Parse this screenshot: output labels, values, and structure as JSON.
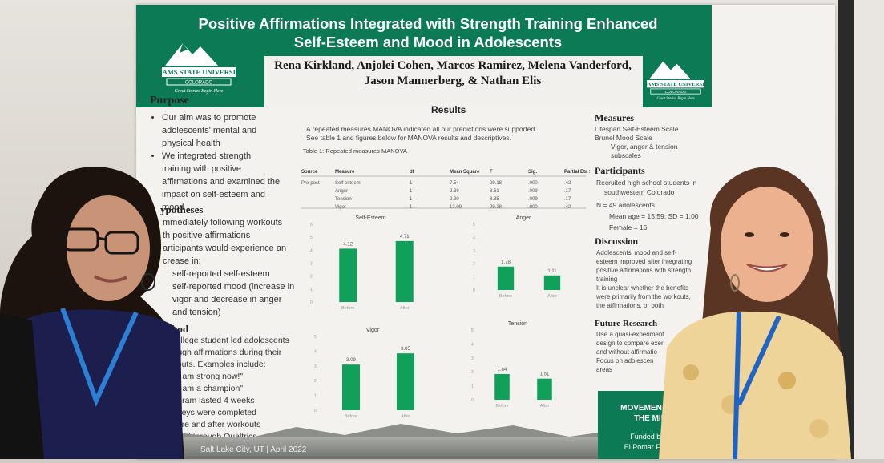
{
  "poster": {
    "title_line1": "Positive Affirmations Integrated with Strength Training Enhanced",
    "title_line2": "Self-Esteem and Mood in Adolescents",
    "authors_line1": "Rena Kirkland, Anjolei Cohen, Marcos Ramirez, Melena Vanderford,",
    "authors_line2": "Jason Mannerberg, & Nathan Elis",
    "logo_text": "ADAMS STATE UNIVERSITY",
    "logo_sub": "COLORADO",
    "logo_tag": "Great Stories Begin Here",
    "purpose": {
      "heading": "Purpose",
      "items": [
        "Our aim was to promote adolescents' mental and physical health",
        "We integrated strength training with positive affirmations and examined the impact on self-esteem and mood"
      ]
    },
    "hypotheses": {
      "heading": "ypotheses",
      "lines": [
        "mmediately following workouts",
        "th positive affirmations",
        "articipants would experience an",
        "crease in:",
        "self-reported self-esteem",
        "self-reported mood (increase in",
        "vigor and decrease in anger",
        "and tension)"
      ]
    },
    "method": {
      "heading": "ethod",
      "lines": [
        "College student led adolescents",
        "rough affirmations during their",
        "rkouts. Examples include:",
        "\"I am strong now!\"",
        "\"I am a champion\"",
        "rogram lasted 4 weeks",
        "urveys were completed",
        "efore and after workouts",
        "osted through Qualtrics"
      ]
    },
    "results": {
      "heading": "Results",
      "line1": "A repeated measures MANOVA indicated all our predictions were supported.",
      "line2": "See table 1 and figures below for MANOVA results and descriptives.",
      "table_caption": "Table 1: Repeated measures MANOVA",
      "table_headers": [
        "Source",
        "Measure",
        "df",
        "Mean Square",
        "F",
        "Sig.",
        "Partial Eta Squared"
      ],
      "table_rows": [
        [
          "Pre-post",
          "Self esteem",
          "1",
          "7.54",
          "29.18",
          ".000",
          ".42"
        ],
        [
          "",
          "Anger",
          "1",
          "2.39",
          "8.61",
          ".009",
          ".17"
        ],
        [
          "",
          "Tension",
          "1",
          "2.30",
          "8.85",
          ".009",
          ".17"
        ],
        [
          "",
          "Vigor",
          "1",
          "12.09",
          "29.28",
          ".000",
          ".42"
        ]
      ]
    },
    "measures": {
      "heading": "Measures",
      "lines": [
        "Lifespan Self-Esteem Scale",
        "Brunel Mood Scale",
        "Vigor, anger & tension",
        "subscales"
      ]
    },
    "participants": {
      "heading": "Participants",
      "lines": [
        "Recruited high school students in",
        "southwestern Colorado",
        "N = 49 adolescents",
        "Mean age = 15.59; SD = 1.00",
        "Female = 16"
      ]
    },
    "discussion": {
      "heading": "Discussion",
      "lines": [
        "Adolescents' mood and self-",
        "esteem improved after integrating",
        "positive affirmations with strength",
        "training",
        "It is unclear whether the benefits",
        "were primarily from the workouts,",
        "the affirmations, or both"
      ]
    },
    "future": {
      "heading": "Future Research",
      "lines": [
        "Use a quasi-experiment",
        "design to compare exer",
        "and without affirmatio",
        "Focus on adolescen",
        "areas"
      ]
    },
    "badge": {
      "line1": "MOVEMENT FOR",
      "line2": "THE MIND",
      "funded1": "Funded by the",
      "funded2": "El Pomar Foundat"
    },
    "footer": "Salt Lake City, UT | April 2022"
  },
  "chart_data": [
    {
      "type": "bar",
      "title": "Self-Esteem",
      "categories": [
        "Before",
        "After"
      ],
      "values": [
        4.12,
        4.71
      ],
      "ylim": [
        0,
        6
      ],
      "color": "#11a05a"
    },
    {
      "type": "bar",
      "title": "Anger",
      "categories": [
        "Before",
        "After"
      ],
      "values": [
        1.78,
        1.11
      ],
      "ylim": [
        0,
        5
      ],
      "color": "#11a05a"
    },
    {
      "type": "bar",
      "title": "Vigor",
      "categories": [
        "Before",
        "After"
      ],
      "values": [
        3.09,
        3.85
      ],
      "ylim": [
        0,
        5
      ],
      "color": "#11a05a"
    },
    {
      "type": "bar",
      "title": "Tension",
      "categories": [
        "Before",
        "After"
      ],
      "values": [
        1.84,
        1.51
      ],
      "ylim": [
        0,
        5
      ],
      "color": "#11a05a"
    }
  ],
  "colors": {
    "header": "#0c7a55",
    "bar": "#11a05a",
    "wall": "#e2ded9"
  }
}
